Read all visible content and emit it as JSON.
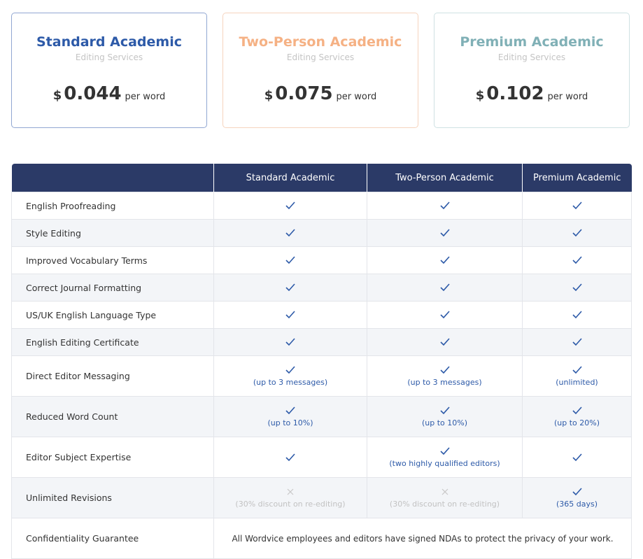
{
  "cards": [
    {
      "title": "Standard Academic",
      "subtitle": "Editing Services",
      "currency": "$",
      "price": "0.044",
      "unit": "per word",
      "accent": "#2d5aa8",
      "border": "#91a7d2"
    },
    {
      "title": "Two-Person Academic",
      "subtitle": "Editing Services",
      "currency": "$",
      "price": "0.075",
      "unit": "per word",
      "accent": "#f5b184",
      "border": "#f6d4be"
    },
    {
      "title": "Premium Academic",
      "subtitle": "Editing Services",
      "currency": "$",
      "price": "0.102",
      "unit": "per word",
      "accent": "#80b0b6",
      "border": "#cfe1e3"
    }
  ],
  "table": {
    "header": [
      "Standard Academic",
      "Two-Person Academic",
      "Premium Academic"
    ],
    "rows": [
      {
        "feature": "English Proofreading",
        "cells": [
          {
            "included": true
          },
          {
            "included": true
          },
          {
            "included": true
          }
        ]
      },
      {
        "feature": "Style Editing",
        "cells": [
          {
            "included": true
          },
          {
            "included": true
          },
          {
            "included": true
          }
        ]
      },
      {
        "feature": "Improved Vocabulary Terms",
        "cells": [
          {
            "included": true
          },
          {
            "included": true
          },
          {
            "included": true
          }
        ]
      },
      {
        "feature": "Correct Journal Formatting",
        "cells": [
          {
            "included": true
          },
          {
            "included": true
          },
          {
            "included": true
          }
        ]
      },
      {
        "feature": "US/UK English Language Type",
        "cells": [
          {
            "included": true
          },
          {
            "included": true
          },
          {
            "included": true
          }
        ]
      },
      {
        "feature": "English Editing Certificate",
        "cells": [
          {
            "included": true
          },
          {
            "included": true
          },
          {
            "included": true
          }
        ]
      },
      {
        "feature": "Direct Editor Messaging",
        "cells": [
          {
            "included": true,
            "note": "(up to 3 messages)"
          },
          {
            "included": true,
            "note": "(up to 3 messages)"
          },
          {
            "included": true,
            "note": "(unlimited)"
          }
        ]
      },
      {
        "feature": "Reduced Word Count",
        "cells": [
          {
            "included": true,
            "note": "(up to 10%)"
          },
          {
            "included": true,
            "note": "(up to 10%)"
          },
          {
            "included": true,
            "note": "(up to 20%)"
          }
        ]
      },
      {
        "feature": "Editor Subject Expertise",
        "cells": [
          {
            "included": true
          },
          {
            "included": true,
            "note": "(two highly qualified editors)"
          },
          {
            "included": true
          }
        ]
      },
      {
        "feature": "Unlimited Revisions",
        "cells": [
          {
            "included": false,
            "note": "(30% discount on re-editing)"
          },
          {
            "included": false,
            "note": "(30% discount on re-editing)"
          },
          {
            "included": true,
            "note": "(365 days)"
          }
        ]
      },
      {
        "feature": "Confidentiality Guarantee",
        "note": "All Wordvice employees and editors have signed NDAs to protect the privacy of your work."
      }
    ]
  }
}
